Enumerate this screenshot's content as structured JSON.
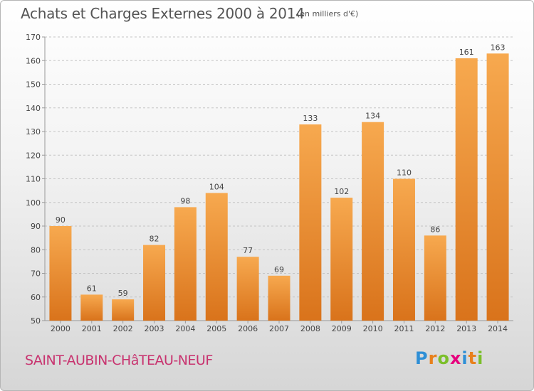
{
  "title": "Achats et Charges Externes 2000 à 2014",
  "subtitle": "(en milliers d'€)",
  "place": "SAINT-AUBIN-CHâTEAU-NEUF",
  "logo": {
    "text": "Proxiti",
    "letters": [
      {
        "ch": "P",
        "color": "#2e8fd6"
      },
      {
        "ch": "r",
        "color": "#e8801c"
      },
      {
        "ch": "o",
        "color": "#7bbf2a"
      },
      {
        "ch": "x",
        "color": "#e6007e"
      },
      {
        "ch": "i",
        "color": "#2e8fd6"
      },
      {
        "ch": "t",
        "color": "#e8801c"
      },
      {
        "ch": "i",
        "color": "#7bbf2a"
      }
    ]
  },
  "colors": {
    "bar_top": "#f7a94f",
    "bar_bottom": "#d9731b",
    "grid": "#c4c4c4",
    "axis": "#999999",
    "text": "#444444"
  },
  "chart_data": {
    "type": "bar",
    "categories": [
      "2000",
      "2001",
      "2002",
      "2003",
      "2004",
      "2005",
      "2006",
      "2007",
      "2008",
      "2009",
      "2010",
      "2011",
      "2012",
      "2013",
      "2014"
    ],
    "values": [
      90,
      61,
      59,
      82,
      98,
      104,
      77,
      69,
      133,
      102,
      134,
      110,
      86,
      161,
      163
    ],
    "ylim": [
      50,
      170
    ],
    "yticks": [
      50,
      60,
      70,
      80,
      90,
      100,
      110,
      120,
      130,
      140,
      150,
      160,
      170
    ],
    "grid": "horizontal dashed",
    "legend": "none",
    "data_labels": true
  }
}
